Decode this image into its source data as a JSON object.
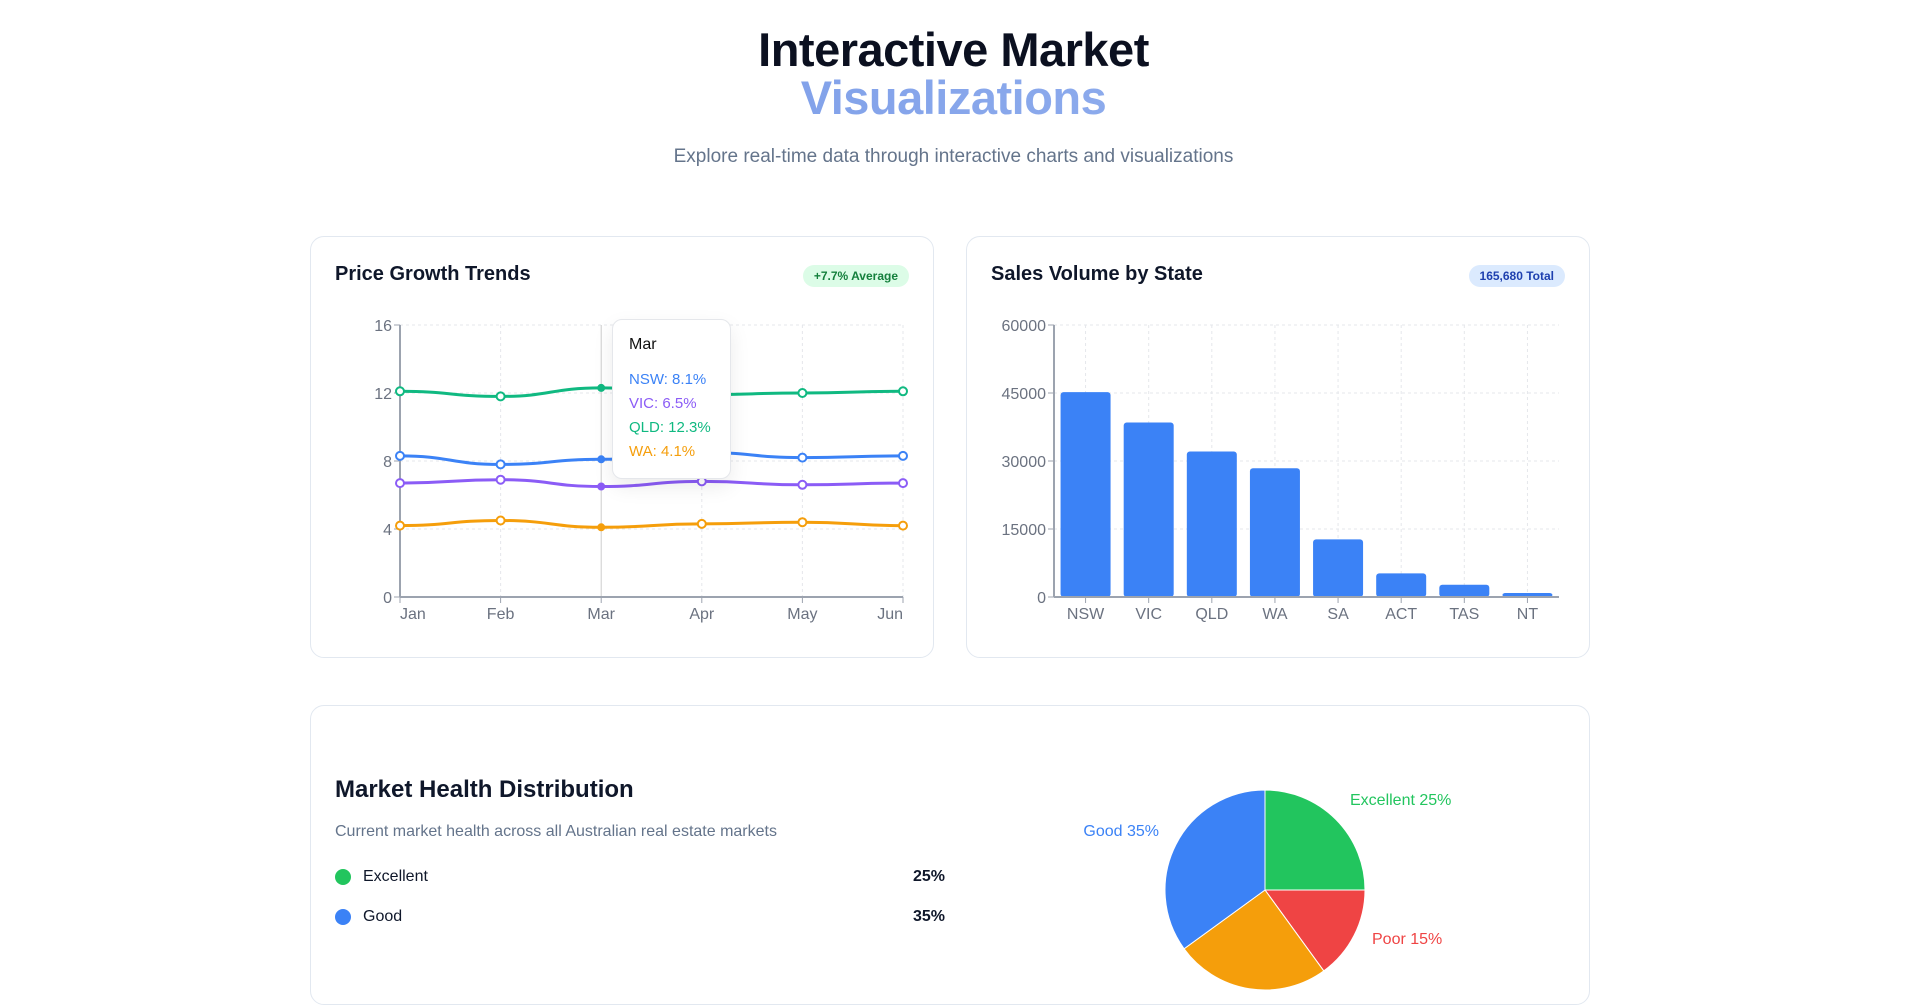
{
  "header": {
    "title_line1": "Interactive Market",
    "title_line2": "Visualizations",
    "subtitle": "Explore real-time data through interactive charts and visualizations"
  },
  "price_card": {
    "title": "Price Growth Trends",
    "badge": "+7.7% Average"
  },
  "sales_card": {
    "title": "Sales Volume by State",
    "badge": "165,680 Total"
  },
  "health_card": {
    "title": "Market Health Distribution",
    "subtitle": "Current market health across all Australian real estate markets",
    "legend": [
      {
        "label": "Excellent",
        "value": "25%",
        "color": "#22c55e"
      },
      {
        "label": "Good",
        "value": "35%",
        "color": "#3b82f6"
      }
    ]
  },
  "tooltip": {
    "title": "Mar",
    "rows": [
      "NSW: 8.1%",
      "VIC: 6.5%",
      "QLD: 12.3%",
      "WA: 4.1%"
    ]
  },
  "chart_data": [
    {
      "type": "line",
      "categories": [
        "Jan",
        "Feb",
        "Mar",
        "Apr",
        "May",
        "Jun"
      ],
      "ylim": [
        0,
        16
      ],
      "yticks": [
        "0",
        "4",
        "8",
        "12",
        "16"
      ],
      "grid": true,
      "series": [
        {
          "name": "NSW",
          "color": "#3b82f6",
          "values": [
            8.3,
            7.8,
            8.1,
            8.5,
            8.2,
            8.3
          ]
        },
        {
          "name": "VIC",
          "color": "#8b5cf6",
          "values": [
            6.7,
            6.9,
            6.5,
            6.8,
            6.6,
            6.7
          ]
        },
        {
          "name": "QLD",
          "color": "#10b981",
          "values": [
            12.1,
            11.8,
            12.3,
            11.9,
            12.0,
            12.1
          ]
        },
        {
          "name": "WA",
          "color": "#f59e0b",
          "values": [
            4.2,
            4.5,
            4.1,
            4.3,
            4.4,
            4.2
          ]
        }
      ]
    },
    {
      "type": "bar",
      "categories": [
        "NSW",
        "VIC",
        "QLD",
        "WA",
        "SA",
        "ACT",
        "TAS",
        "NT"
      ],
      "values": [
        45200,
        38500,
        32100,
        28400,
        12700,
        5200,
        2700,
        880
      ],
      "ylim": [
        0,
        60000
      ],
      "yticks": [
        "0",
        "15000",
        "30000",
        "45000",
        "60000"
      ],
      "color": "#3b82f6",
      "grid": true
    },
    {
      "type": "pie",
      "slices": [
        {
          "label": "Excellent 25%",
          "value": 25,
          "color": "#22c55e"
        },
        {
          "label": "Poor 15%",
          "value": 15,
          "color": "#ef4444"
        },
        {
          "label": "",
          "value": 25,
          "color": "#f59e0b"
        },
        {
          "label": "Good 35%",
          "value": 35,
          "color": "#3b82f6"
        }
      ]
    }
  ]
}
